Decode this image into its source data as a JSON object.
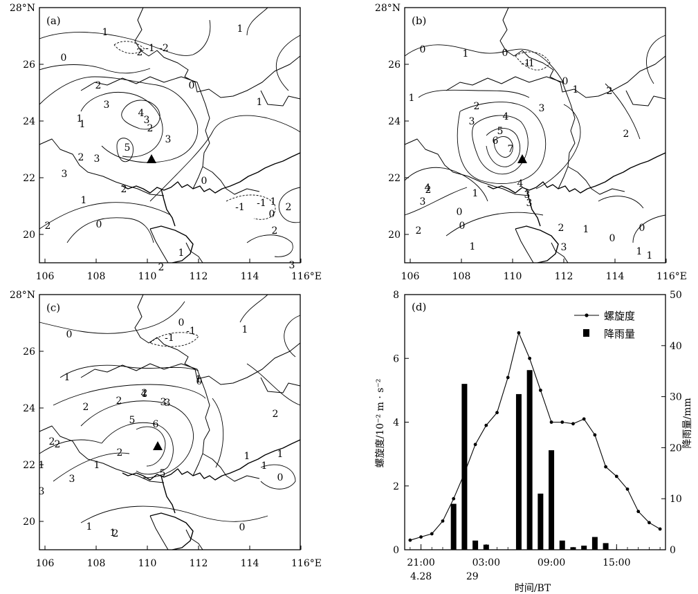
{
  "maps": {
    "lat_ticks": [
      "28°N",
      "26",
      "24",
      "22",
      "20"
    ],
    "lon_ticks": [
      "106",
      "108",
      "110",
      "112",
      "114",
      "116°E"
    ],
    "panels": [
      {
        "label": "(a)",
        "contour_labels": [
          "1",
          "0",
          "1",
          "-1",
          "2",
          "-2",
          "0",
          "1",
          "2",
          "3",
          "4",
          "3",
          "2",
          "5",
          "3",
          "1",
          "3",
          "2",
          "3",
          "2",
          "1",
          "2",
          "0",
          "0",
          "-1",
          "0",
          "1",
          "2",
          "2",
          "3",
          "2",
          "1",
          "-1",
          "1"
        ]
      },
      {
        "label": "(b)",
        "contour_labels": [
          "0",
          "1",
          "-1",
          "0",
          "-1",
          "2",
          "0",
          "1",
          "2",
          "1",
          "2",
          "3",
          "4",
          "5",
          "6",
          "7",
          "3",
          "3",
          "4",
          "3",
          "2",
          "1",
          "0",
          "2",
          "4",
          "3",
          "0",
          "1",
          "1",
          "0",
          "0",
          "2",
          "3",
          "1",
          "1"
        ]
      },
      {
        "label": "(c)",
        "contour_labels": [
          "0",
          "0",
          "-1",
          "-1",
          "1",
          "1",
          "2",
          "1",
          "0",
          "2",
          "2",
          "2",
          "4",
          "3",
          "3",
          "2",
          "1",
          "5",
          "6",
          "2",
          "1",
          "3",
          "3",
          "5",
          "1",
          "1",
          "2",
          "1",
          "2",
          "0",
          "1",
          "0",
          "1"
        ]
      }
    ]
  },
  "chart_data": {
    "type": "bar+line",
    "panel_label": "(d)",
    "x_tick_labels": [
      "21:00",
      "03:00",
      "09:00",
      "15:00"
    ],
    "x_date_labels": [
      "4.28",
      "29"
    ],
    "x_axis_label": "时间/BT",
    "y_left_label": "螺旋度/10⁻² m · s⁻²",
    "y_right_label": "降雨量/mm",
    "y_left_ticks": [
      "0",
      "2",
      "4",
      "6",
      "8"
    ],
    "y_right_ticks": [
      "0",
      "10",
      "20",
      "30",
      "40",
      "50"
    ],
    "y_left_lim": [
      0,
      8
    ],
    "y_right_lim": [
      0,
      50
    ],
    "legend": [
      "螺旋度",
      "降雨量"
    ],
    "legend_position": "top-right",
    "hours": [
      20,
      21,
      22,
      23,
      0,
      1,
      2,
      3,
      4,
      5,
      6,
      7,
      8,
      9,
      10,
      11,
      12,
      13,
      14,
      15,
      16,
      17,
      18,
      19
    ],
    "helicity": [
      0.3,
      0.4,
      0.5,
      0.9,
      1.6,
      2.4,
      3.3,
      3.9,
      4.3,
      5.4,
      6.8,
      6.0,
      5.0,
      4.0,
      4.0,
      3.95,
      4.1,
      3.6,
      2.6,
      2.3,
      1.9,
      1.2,
      0.85,
      0.65
    ],
    "rainfall_bars": [
      {
        "hour": 0,
        "value": 9
      },
      {
        "hour": 1,
        "value": 32.5
      },
      {
        "hour": 2,
        "value": 1.8
      },
      {
        "hour": 3,
        "value": 1
      },
      {
        "hour": 6,
        "value": 30.5
      },
      {
        "hour": 7,
        "value": 35.2
      },
      {
        "hour": 8,
        "value": 11
      },
      {
        "hour": 9,
        "value": 19.5
      },
      {
        "hour": 10,
        "value": 1.8
      },
      {
        "hour": 11,
        "value": 0.5
      },
      {
        "hour": 12,
        "value": 0.8
      },
      {
        "hour": 13,
        "value": 2.5
      },
      {
        "hour": 14,
        "value": 1.3
      }
    ]
  }
}
